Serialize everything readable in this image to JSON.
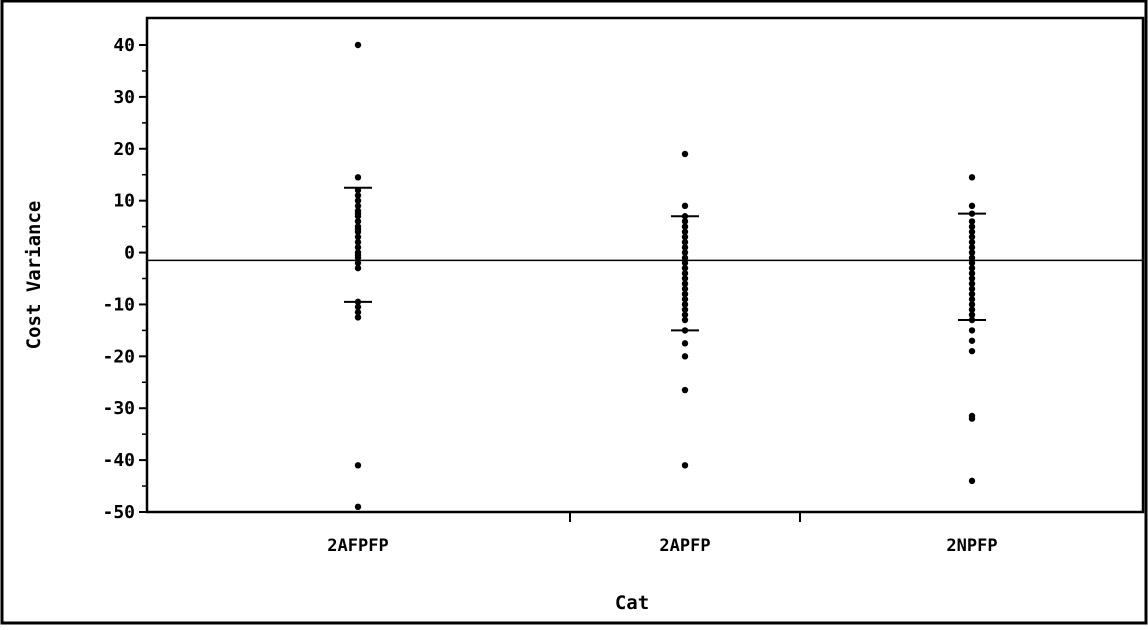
{
  "chart_data": {
    "type": "scatter",
    "xlabel": "Cat",
    "ylabel": "Cost Variance",
    "ylim": [
      -50,
      45
    ],
    "yticks": [
      40,
      30,
      20,
      10,
      0,
      -10,
      -20,
      -30,
      -40,
      -50
    ],
    "yticks_text": [
      "40",
      "30",
      "20",
      "10",
      "0",
      "-10",
      "-20",
      "-30",
      "-40",
      "-50"
    ],
    "categories": [
      "2AFPFP",
      "2APFP",
      "2NPFP"
    ],
    "reference_line": -1.5,
    "groups": [
      {
        "category": "2AFPFP",
        "values": [
          40,
          14.5,
          12,
          11,
          10,
          9,
          8,
          7.5,
          7,
          6,
          5,
          4.5,
          4,
          3,
          2,
          1,
          0,
          -0.5,
          -1,
          -2,
          -3,
          -9.5,
          -10.5,
          -11.5,
          -12.5,
          -41,
          -49
        ],
        "upper_bar": 12.5,
        "lower_bar": -9.5
      },
      {
        "category": "2APFP",
        "values": [
          19,
          9,
          7,
          6,
          5,
          4,
          3,
          2,
          1,
          0,
          -1,
          -2,
          -3,
          -4,
          -5,
          -6,
          -7,
          -8,
          -9,
          -10,
          -11,
          -12,
          -13,
          -15,
          -17.5,
          -20,
          -26.5,
          -41
        ],
        "upper_bar": 7,
        "lower_bar": -15
      },
      {
        "category": "2NPFP",
        "values": [
          14.5,
          9,
          7.5,
          6,
          5,
          4,
          3,
          2,
          1,
          0,
          -1,
          -2,
          -3,
          -4,
          -5,
          -6,
          -7,
          -8,
          -9,
          -10,
          -11,
          -12,
          -13,
          -15,
          -17,
          -19,
          -31.5,
          -32,
          -44
        ],
        "upper_bar": 7.5,
        "lower_bar": -13
      }
    ]
  }
}
